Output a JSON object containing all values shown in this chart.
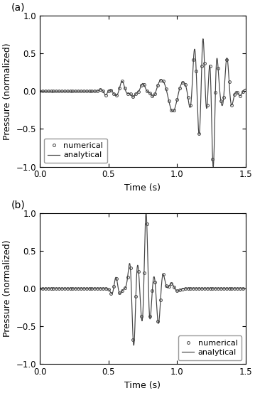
{
  "title_a": "(a)",
  "title_b": "(b)",
  "xlabel": "Time (s)",
  "ylabel": "Pressure (normalized)",
  "xlim": [
    0,
    1.5
  ],
  "ylim": [
    -1,
    1
  ],
  "xticks": [
    0,
    0.5,
    1.0,
    1.5
  ],
  "yticks": [
    -1,
    -0.5,
    0,
    0.5,
    1
  ],
  "legend_numerical": "numerical",
  "legend_analytical": "analytical",
  "line_color": "#444444",
  "marker_color": "#444444",
  "bg_color": "#ffffff",
  "figsize": [
    3.59,
    5.53
  ],
  "dpi": 100
}
